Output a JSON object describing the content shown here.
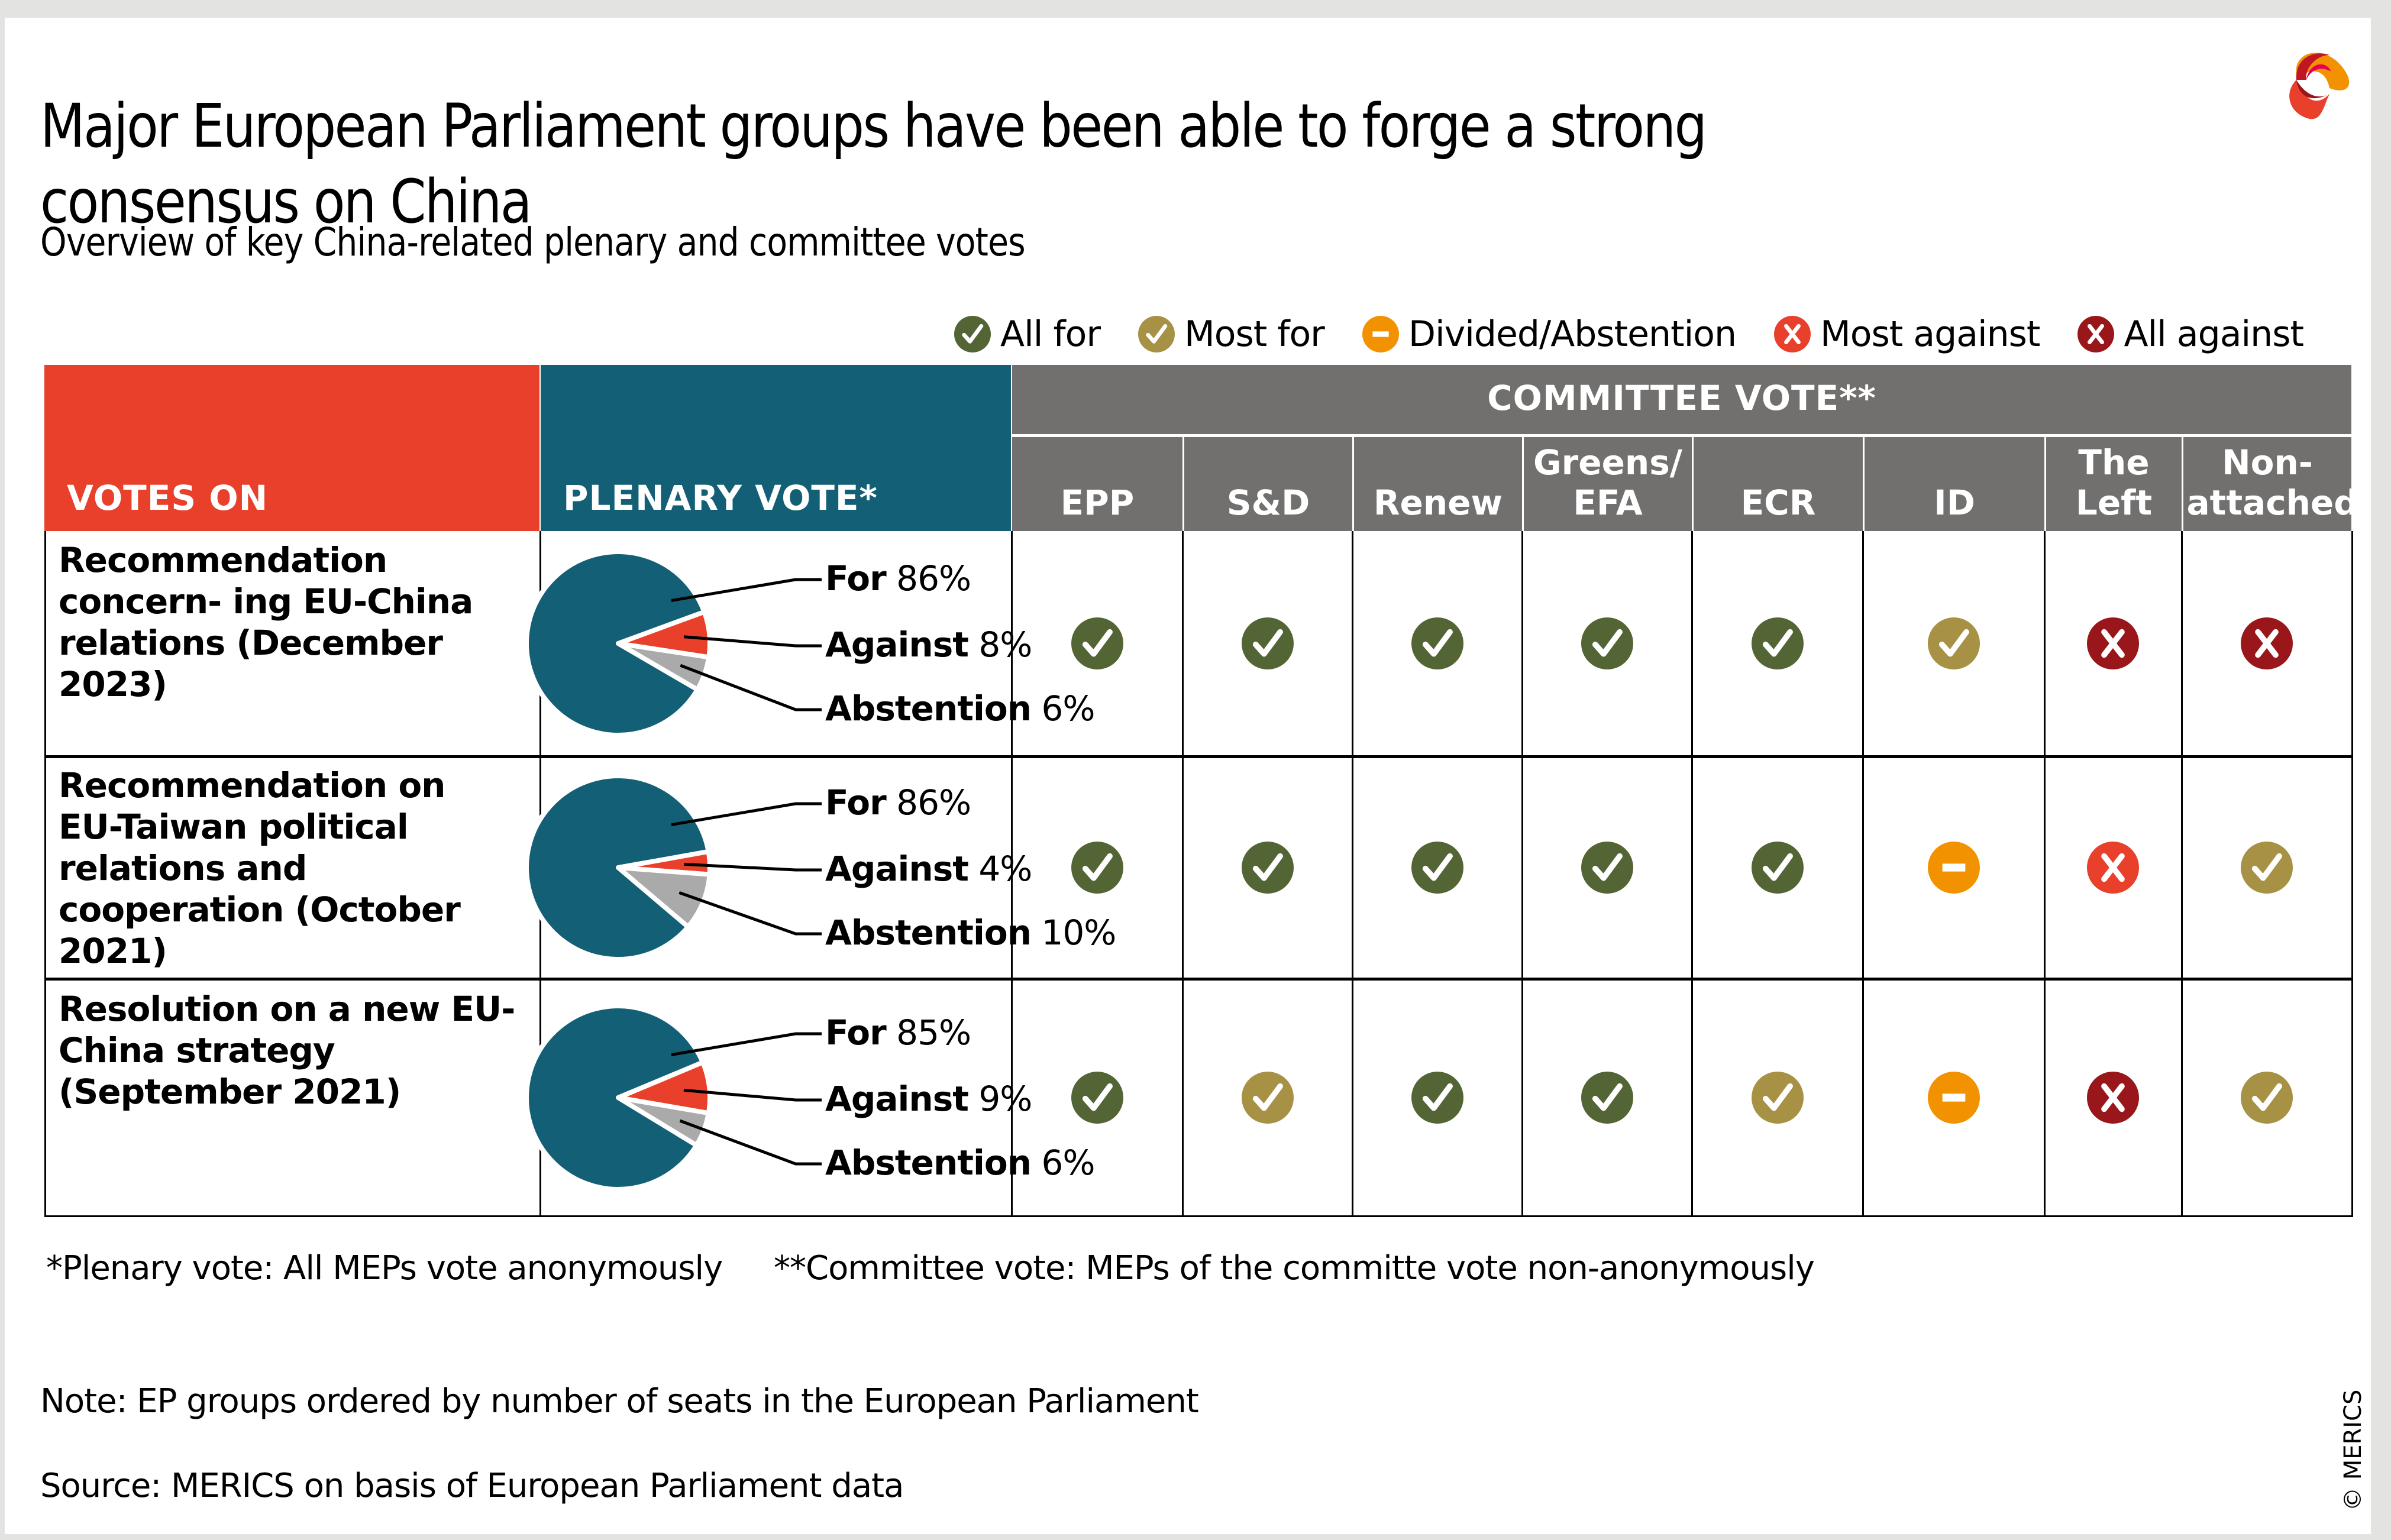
{
  "header": {
    "title": "Major European Parliament groups have been able to forge a strong consensus on China",
    "subtitle": "Overview of key China-related plenary and committee votes",
    "logo": "merics-logo-icon"
  },
  "legend": [
    {
      "key": "all_for",
      "label": "All for",
      "icon": "check-icon",
      "color": "#536535"
    },
    {
      "key": "most_for",
      "label": "Most for",
      "icon": "check-icon",
      "color": "#a69145"
    },
    {
      "key": "divided",
      "label": "Divided/Abstention",
      "icon": "minus-icon",
      "color": "#f39200"
    },
    {
      "key": "most_against",
      "label": "Most against",
      "icon": "x-icon",
      "color": "#e8402b"
    },
    {
      "key": "all_against",
      "label": "All against",
      "icon": "x-icon",
      "color": "#99171b"
    }
  ],
  "table": {
    "votes_on_header": "VOTES ON",
    "plenary_header": "PLENARY VOTE*",
    "committee_header": "COMMITTEE VOTE**",
    "parties": [
      "EPP",
      "S&D",
      "Renew",
      "Greens/ EFA",
      "ECR",
      "ID",
      "The Left",
      "Non- attached"
    ],
    "colors": {
      "votes_on": "#e8402b",
      "plenary": "#136076",
      "committee": "#71706e"
    }
  },
  "chart_data": {
    "type": "table",
    "title": "Major European Parliament groups have been able to forge a strong consensus on China",
    "pie_colors": {
      "For": "#136076",
      "Against": "#e8402b",
      "Abstention": "#aaaaaa"
    },
    "rows": [
      {
        "title": "Recommendation concern- ing EU-China relations (December 2023)",
        "plenary": [
          {
            "label": "For",
            "value": 86
          },
          {
            "label": "Against",
            "value": 8
          },
          {
            "label": "Abstention",
            "value": 6
          }
        ],
        "committee": [
          "all_for",
          "all_for",
          "all_for",
          "all_for",
          "all_for",
          "most_for",
          "all_against",
          "all_against"
        ]
      },
      {
        "title": "Recommendation on EU-Taiwan political relations and cooperation (October 2021)",
        "plenary": [
          {
            "label": "For",
            "value": 86
          },
          {
            "label": "Against",
            "value": 4
          },
          {
            "label": "Abstention",
            "value": 10
          }
        ],
        "committee": [
          "all_for",
          "all_for",
          "all_for",
          "all_for",
          "all_for",
          "divided",
          "most_against",
          "most_for"
        ]
      },
      {
        "title": "Resolution on a new EU-China strategy (September 2021)",
        "plenary": [
          {
            "label": "For",
            "value": 85
          },
          {
            "label": "Against",
            "value": 9
          },
          {
            "label": "Abstention",
            "value": 6
          }
        ],
        "committee": [
          "all_for",
          "most_for",
          "all_for",
          "all_for",
          "most_for",
          "divided",
          "all_against",
          "most_for"
        ]
      }
    ]
  },
  "footer": {
    "footnote_plenary": "*Plenary vote: All MEPs vote anonymously",
    "footnote_committee": "**Committee vote: MEPs of the committe vote non-anonymously",
    "note": "Note: EP groups ordered by number of seats in the European Parliament",
    "source": "Source: MERICS on basis of European Parliament data",
    "copyright": "© MERICS"
  }
}
